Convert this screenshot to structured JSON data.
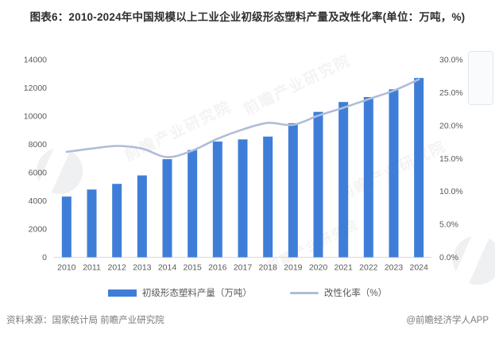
{
  "title": "图表6：2010-2024年中国规模以上工业企业初级形态塑料产量及改性化率(单位：万吨，%)",
  "chart_data": {
    "type": "bar",
    "categories": [
      "2010",
      "2011",
      "2012",
      "2013",
      "2014",
      "2015",
      "2016",
      "2017",
      "2018",
      "2019",
      "2020",
      "2021",
      "2022",
      "2023",
      "2024"
    ],
    "series": [
      {
        "name": "初级形态塑料产量（万吨）",
        "kind": "bar",
        "axis": "left",
        "color": "#3f7ed8",
        "values": [
          4300,
          4800,
          5200,
          5800,
          6950,
          7600,
          8200,
          8350,
          8550,
          9500,
          10300,
          11000,
          11350,
          11900,
          12700
        ]
      },
      {
        "name": "改性化率（%）",
        "kind": "line",
        "axis": "right",
        "color": "#aebdd8",
        "values": [
          16.0,
          16.5,
          16.9,
          16.5,
          15.2,
          16.2,
          18.0,
          19.4,
          20.4,
          20.1,
          21.5,
          22.7,
          24.0,
          25.3,
          27.0
        ]
      }
    ],
    "left_axis": {
      "min": 0,
      "max": 14000,
      "step": 2000,
      "ticks": [
        "0",
        "2000",
        "4000",
        "6000",
        "8000",
        "10000",
        "12000",
        "14000"
      ]
    },
    "right_axis": {
      "min": 0,
      "max": 30,
      "step": 5,
      "ticks": [
        "0.0%",
        "5.0%",
        "10.0%",
        "15.0%",
        "20.0%",
        "25.0%",
        "30.0%"
      ]
    },
    "grid": false,
    "legend_position": "bottom",
    "axis_label_color": "#595959",
    "baseline_color": "#d9d9d9"
  },
  "footer": {
    "source": "资料来源：国家统计局 前瞻产业研究院",
    "credit": "@前瞻经济学人APP"
  },
  "watermark": {
    "text": "前瞻产业研究院"
  }
}
